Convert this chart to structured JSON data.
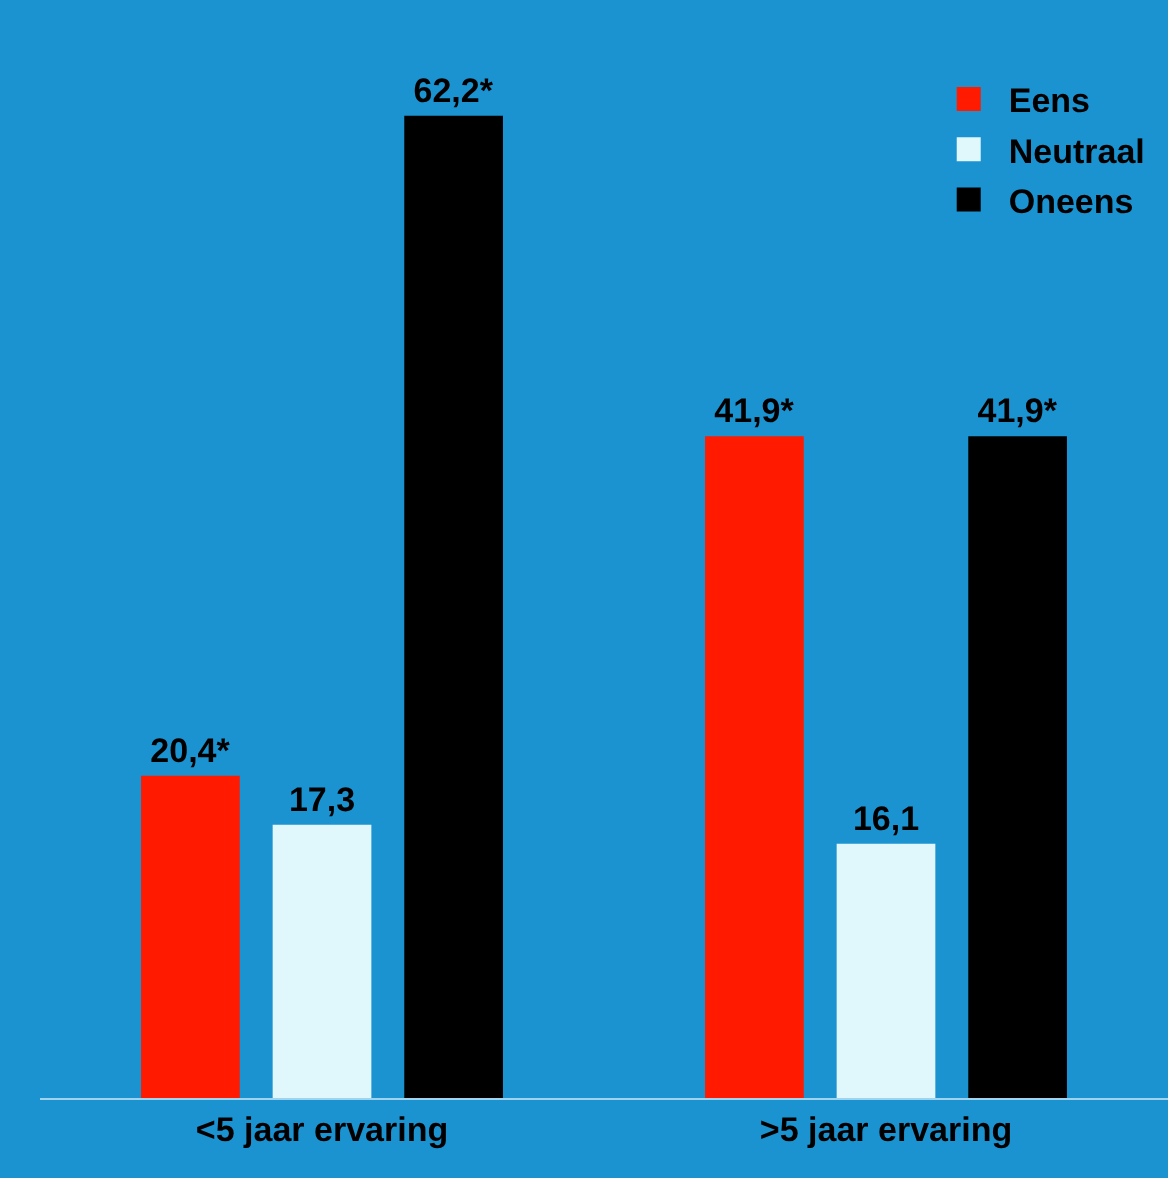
{
  "chart_data": {
    "type": "bar",
    "categories": [
      "<5 jaar ervaring",
      ">5 jaar ervaring"
    ],
    "series": [
      {
        "name": "Eens",
        "color": "#ff1a00",
        "values": [
          20.4,
          41.9
        ],
        "value_labels": [
          "20,4*",
          "41,9*"
        ]
      },
      {
        "name": "Neutraal",
        "color": "#e0f8fb",
        "values": [
          17.3,
          16.1
        ],
        "value_labels": [
          "17,3",
          "16,1"
        ]
      },
      {
        "name": "Oneens",
        "color": "#000000",
        "values": [
          62.2,
          41.9
        ],
        "value_labels": [
          "62,2*",
          "41,9*"
        ]
      }
    ],
    "legend": "top right",
    "grid": false
  }
}
